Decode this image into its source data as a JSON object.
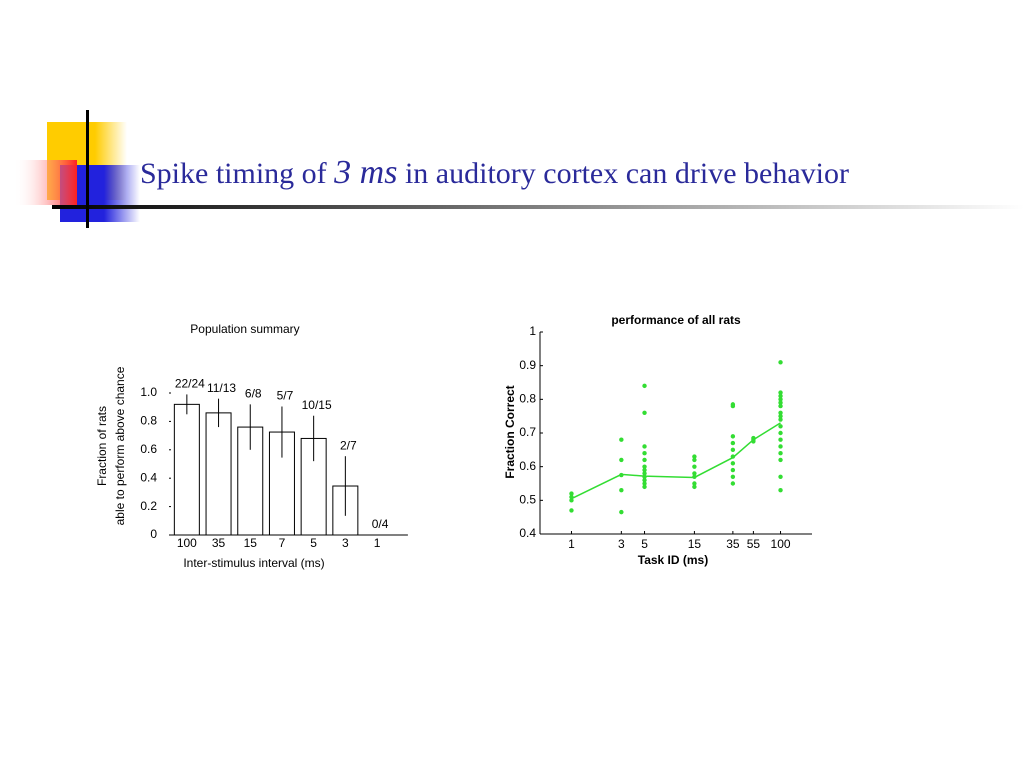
{
  "slide": {
    "title_parts": [
      "Spike timing of",
      "3 ms",
      "in auditory cortex can drive behavior"
    ]
  },
  "chart_data": [
    {
      "type": "bar",
      "title": "Population summary",
      "y_label_lines": [
        "Fraction of rats",
        "able to perform above chance"
      ],
      "x_label": "Inter-stimulus interval (ms)",
      "categories": [
        "100",
        "35",
        "15",
        "7",
        "5",
        "3",
        "1"
      ],
      "values": [
        0.92,
        0.86,
        0.76,
        0.725,
        0.68,
        0.345,
        0
      ],
      "errors": [
        0.07,
        0.1,
        0.16,
        0.18,
        0.16,
        0.21,
        0
      ],
      "annotations": [
        "22/24",
        "11/13",
        "6/8",
        "5/7",
        "10/15",
        "2/7",
        "0/4"
      ],
      "color": "#ffffff",
      "ylim": [
        0,
        1
      ],
      "yticks": [
        0,
        0.2,
        0.4,
        0.6,
        0.8,
        {
          "value": 1,
          "label": "1.0"
        }
      ]
    },
    {
      "type": "scatter",
      "title": "performance of all rats",
      "x_label": "Task ID (ms)",
      "y_label": "Fraction Correct",
      "xlog": true,
      "xlim": [
        0.5,
        200
      ],
      "xticks": [
        1,
        3,
        5,
        15,
        35,
        55,
        100
      ],
      "ylim": [
        0.4,
        1
      ],
      "yticks": [
        0.4,
        0.5,
        0.6,
        0.7,
        0.8,
        0.9,
        1
      ],
      "series": [
        {
          "type": "markers",
          "color": "#33dd33",
          "x": [
            1,
            1,
            1,
            1,
            3,
            3,
            3,
            3,
            3,
            5,
            5,
            5,
            5,
            5,
            5,
            5,
            5,
            5,
            5,
            5,
            5,
            15,
            15,
            15,
            15,
            15,
            15,
            15,
            35,
            35,
            35,
            35,
            35,
            35,
            35,
            35,
            35,
            35,
            55,
            55,
            55,
            100,
            100,
            100,
            100,
            100,
            100,
            100,
            100,
            100,
            100,
            100,
            100,
            100,
            100,
            100,
            100,
            100
          ],
          "values": [
            0.52,
            0.51,
            0.5,
            0.47,
            0.68,
            0.62,
            0.575,
            0.53,
            0.465,
            0.84,
            0.76,
            0.66,
            0.64,
            0.62,
            0.6,
            0.59,
            0.58,
            0.57,
            0.56,
            0.55,
            0.54,
            0.63,
            0.62,
            0.6,
            0.58,
            0.57,
            0.55,
            0.54,
            0.785,
            0.78,
            0.69,
            0.67,
            0.65,
            0.63,
            0.61,
            0.59,
            0.57,
            0.55,
            0.685,
            0.68,
            0.675,
            0.91,
            0.82,
            0.81,
            0.8,
            0.79,
            0.78,
            0.76,
            0.75,
            0.74,
            0.72,
            0.7,
            0.68,
            0.66,
            0.64,
            0.62,
            0.57,
            0.53
          ]
        },
        {
          "type": "line",
          "color": "#33dd33",
          "x": [
            1,
            3,
            5,
            15,
            35,
            55,
            100
          ],
          "values": [
            0.505,
            0.577,
            0.572,
            0.568,
            0.627,
            0.68,
            0.73
          ]
        }
      ]
    }
  ]
}
